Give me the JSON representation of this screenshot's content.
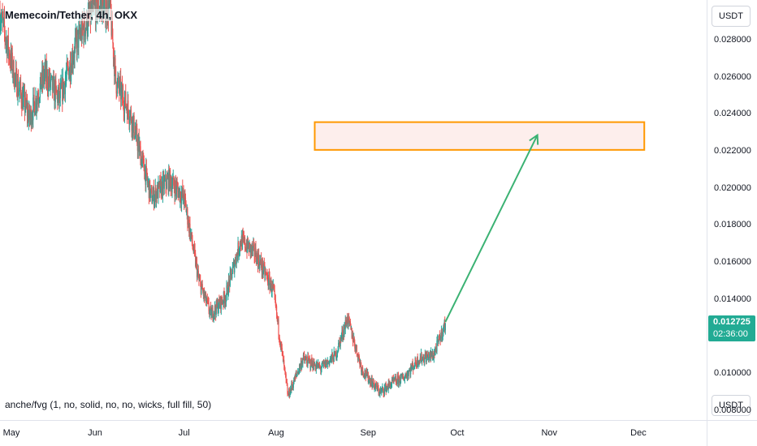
{
  "header": {
    "title": "Memecoin/Tether, 4h, OKX"
  },
  "indicator": {
    "label": "anche/fvg (1, no, solid, no, no, wicks, full fill, 50)"
  },
  "price_axis": {
    "currency_top": "USDT",
    "currency_bottom": "USDT",
    "current_price": "0.012725",
    "countdown": "02:36:00"
  },
  "colors": {
    "up_candle": "#26a69a",
    "down_candle": "#ef5350",
    "price_tag": "#22ab94",
    "zone_border": "#ff9800",
    "zone_fill": "#fdecea",
    "arrow": "#3bb273"
  },
  "chart_data": {
    "type": "candlestick",
    "title": "Memecoin/Tether, 4h, OKX",
    "x_tick_labels": [
      "May",
      "Jun",
      "Jul",
      "Aug",
      "Sep",
      "Oct",
      "Nov",
      "Dec"
    ],
    "y_tick_labels": [
      "0.008000",
      "0.010000",
      "0.012000",
      "0.014000",
      "0.016000",
      "0.018000",
      "0.020000",
      "0.022000",
      "0.024000",
      "0.026000",
      "0.028000"
    ],
    "ylim": [
      0.0075,
      0.0302
    ],
    "x_range": [
      "2024-04-30",
      "2024-12-24"
    ],
    "grid": false,
    "last_price": 0.012725,
    "price_path": [
      {
        "date": "2024-04-30",
        "price": 0.0295
      },
      {
        "date": "2024-05-05",
        "price": 0.026
      },
      {
        "date": "2024-05-10",
        "price": 0.0238
      },
      {
        "date": "2024-05-15",
        "price": 0.0262
      },
      {
        "date": "2024-05-20",
        "price": 0.0248
      },
      {
        "date": "2024-05-26",
        "price": 0.028
      },
      {
        "date": "2024-06-01",
        "price": 0.0298
      },
      {
        "date": "2024-06-06",
        "price": 0.0298
      },
      {
        "date": "2024-06-08",
        "price": 0.0258
      },
      {
        "date": "2024-06-13",
        "price": 0.024
      },
      {
        "date": "2024-06-20",
        "price": 0.0195
      },
      {
        "date": "2024-06-26",
        "price": 0.0205
      },
      {
        "date": "2024-07-01",
        "price": 0.0195
      },
      {
        "date": "2024-07-06",
        "price": 0.015
      },
      {
        "date": "2024-07-10",
        "price": 0.0132
      },
      {
        "date": "2024-07-15",
        "price": 0.0142
      },
      {
        "date": "2024-07-20",
        "price": 0.0172
      },
      {
        "date": "2024-07-25",
        "price": 0.0165
      },
      {
        "date": "2024-07-31",
        "price": 0.0145
      },
      {
        "date": "2024-08-05",
        "price": 0.0088
      },
      {
        "date": "2024-08-10",
        "price": 0.0108
      },
      {
        "date": "2024-08-16",
        "price": 0.0103
      },
      {
        "date": "2024-08-21",
        "price": 0.011
      },
      {
        "date": "2024-08-25",
        "price": 0.013
      },
      {
        "date": "2024-08-30",
        "price": 0.0102
      },
      {
        "date": "2024-09-05",
        "price": 0.009
      },
      {
        "date": "2024-09-09",
        "price": 0.0095
      },
      {
        "date": "2024-09-13",
        "price": 0.0098
      },
      {
        "date": "2024-09-18",
        "price": 0.0108
      },
      {
        "date": "2024-09-23",
        "price": 0.011
      },
      {
        "date": "2024-09-27",
        "price": 0.012725
      }
    ],
    "annotations": {
      "target_zone": {
        "from": "2024-08-14",
        "to": "2024-12-03",
        "low": 0.0221,
        "high": 0.0236
      },
      "projection_arrow": {
        "start": {
          "date": "2024-09-27",
          "price": 0.0128
        },
        "end": {
          "date": "2024-10-28",
          "price": 0.0229
        }
      }
    }
  }
}
